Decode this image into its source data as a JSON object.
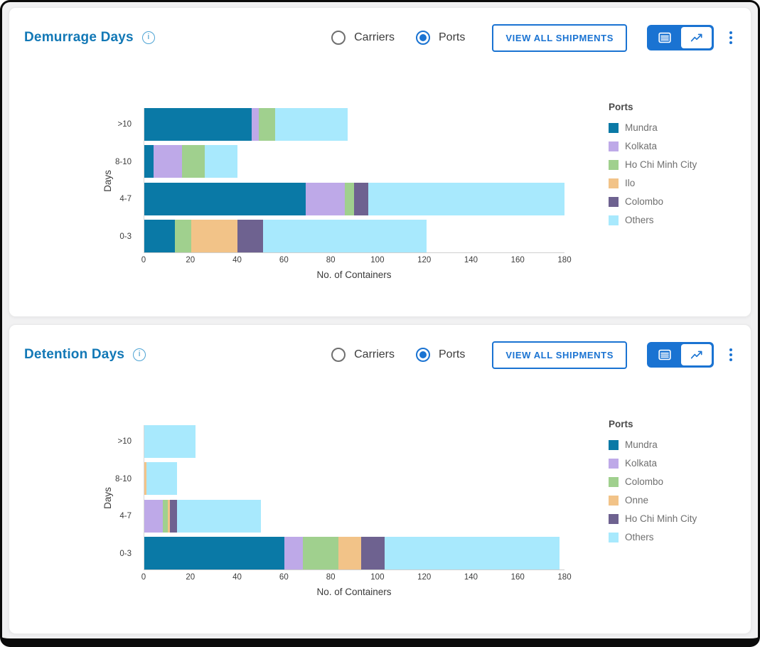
{
  "colors": {
    "title_blue": "#1278b6",
    "control_blue": "#1a73d2",
    "axis_text": "#3d3d3d",
    "legend_text": "#6f6f6f"
  },
  "panels": [
    {
      "title": "Demurrage Days",
      "info_icon": "info-icon",
      "radios": [
        {
          "label": "Carriers",
          "selected": false
        },
        {
          "label": "Ports",
          "selected": true
        }
      ],
      "button_label": "VIEW ALL SHIPMENTS",
      "view_toggle": {
        "options": [
          "table",
          "chart"
        ],
        "active": "chart"
      },
      "menu_icon": "kebab-menu-icon"
    },
    {
      "title": "Detention Days",
      "info_icon": "info-icon",
      "radios": [
        {
          "label": "Carriers",
          "selected": false
        },
        {
          "label": "Ports",
          "selected": true
        }
      ],
      "button_label": "VIEW ALL SHIPMENTS",
      "view_toggle": {
        "options": [
          "table",
          "chart"
        ],
        "active": "chart"
      },
      "menu_icon": "kebab-menu-icon"
    }
  ],
  "chart_data": [
    {
      "type": "bar",
      "orientation": "horizontal-stacked",
      "title": "Demurrage Days",
      "categories": [
        ">10",
        "8-10",
        "4-7",
        "0-3"
      ],
      "series": [
        {
          "name": "Mundra",
          "color": "#0a79a6",
          "values": [
            46,
            4,
            69,
            13
          ]
        },
        {
          "name": "Kolkata",
          "color": "#bea9e8",
          "values": [
            3,
            12,
            17,
            0
          ]
        },
        {
          "name": "Ho Chi Minh City",
          "color": "#a0d08e",
          "values": [
            7,
            10,
            4,
            7
          ]
        },
        {
          "name": "Ilo",
          "color": "#f2c388",
          "values": [
            0,
            0,
            0,
            20
          ]
        },
        {
          "name": "Colombo",
          "color": "#6e6290",
          "values": [
            0,
            0,
            6,
            11
          ]
        },
        {
          "name": "Others",
          "color": "#a8e9fd",
          "values": [
            31,
            14,
            84,
            70
          ]
        }
      ],
      "row_totals": [
        87,
        40,
        180,
        121
      ],
      "xlabel": "No. of Containers",
      "ylabel": "Days",
      "xlim": [
        0,
        180
      ],
      "xticks": [
        0,
        20,
        40,
        60,
        80,
        100,
        120,
        140,
        160,
        180
      ],
      "legend_title": "Ports",
      "legend_position": "right",
      "grid": false
    },
    {
      "type": "bar",
      "orientation": "horizontal-stacked",
      "title": "Detention Days",
      "categories": [
        ">10",
        "8-10",
        "4-7",
        "0-3"
      ],
      "series": [
        {
          "name": "Mundra",
          "color": "#0a79a6",
          "values": [
            0,
            0,
            0,
            60
          ]
        },
        {
          "name": "Kolkata",
          "color": "#bea9e8",
          "values": [
            0,
            0,
            8,
            8
          ]
        },
        {
          "name": "Colombo",
          "color": "#a0d08e",
          "values": [
            0,
            0,
            2,
            15
          ]
        },
        {
          "name": "Onne",
          "color": "#f2c388",
          "values": [
            0,
            1,
            1,
            10
          ]
        },
        {
          "name": "Ho Chi Minh City",
          "color": "#6e6290",
          "values": [
            0,
            0,
            3,
            10
          ]
        },
        {
          "name": "Others",
          "color": "#a8e9fd",
          "values": [
            22,
            13,
            36,
            75
          ]
        }
      ],
      "row_totals": [
        22,
        14,
        50,
        178
      ],
      "xlabel": "No. of Containers",
      "ylabel": "Days",
      "xlim": [
        0,
        180
      ],
      "xticks": [
        0,
        20,
        40,
        60,
        80,
        100,
        120,
        140,
        160,
        180
      ],
      "legend_title": "Ports",
      "legend_position": "right",
      "grid": false
    }
  ]
}
